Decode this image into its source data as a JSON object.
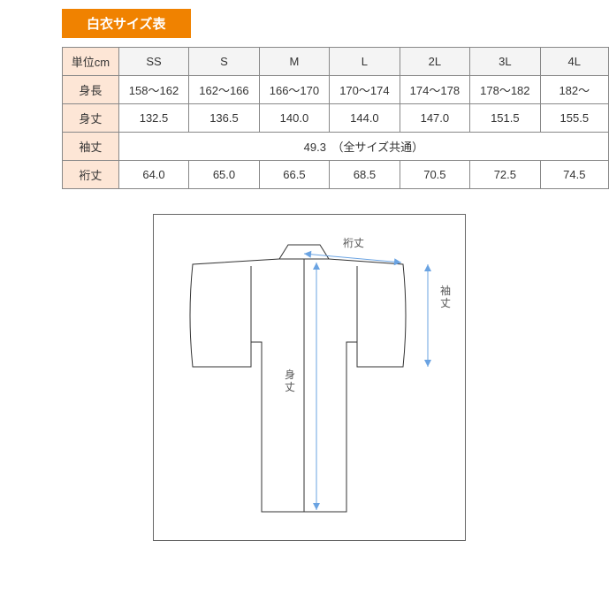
{
  "title": "白衣サイズ表",
  "table": {
    "unit_label": "単位cm",
    "size_headers": [
      "SS",
      "S",
      "M",
      "L",
      "2L",
      "3L",
      "4L"
    ],
    "rows": [
      {
        "label": "身長",
        "cells": [
          "158〜162",
          "162〜166",
          "166〜170",
          "170〜174",
          "174〜178",
          "178〜182",
          "182〜"
        ]
      },
      {
        "label": "身丈",
        "cells": [
          "132.5",
          "136.5",
          "140.0",
          "144.0",
          "147.0",
          "151.5",
          "155.5"
        ]
      },
      {
        "label": "袖丈",
        "merged": "49.3　（全サイズ共通）"
      },
      {
        "label": "裄丈",
        "cells": [
          "64.0",
          "65.0",
          "66.5",
          "68.5",
          "70.5",
          "72.5",
          "74.5"
        ]
      }
    ],
    "header_bg": "#f4f4f4",
    "rowlabel_bg": "#fde6d6",
    "border_color": "#888888"
  },
  "title_style": {
    "bg": "#f08200",
    "fg": "#ffffff"
  },
  "diagram": {
    "label_yukitake": "裄丈",
    "label_sodetake": "袖丈",
    "label_mitake": "身丈",
    "stroke": "#333333",
    "arrow_color": "#6aa3e2",
    "text_color": "#555555",
    "fontsize": 12
  }
}
